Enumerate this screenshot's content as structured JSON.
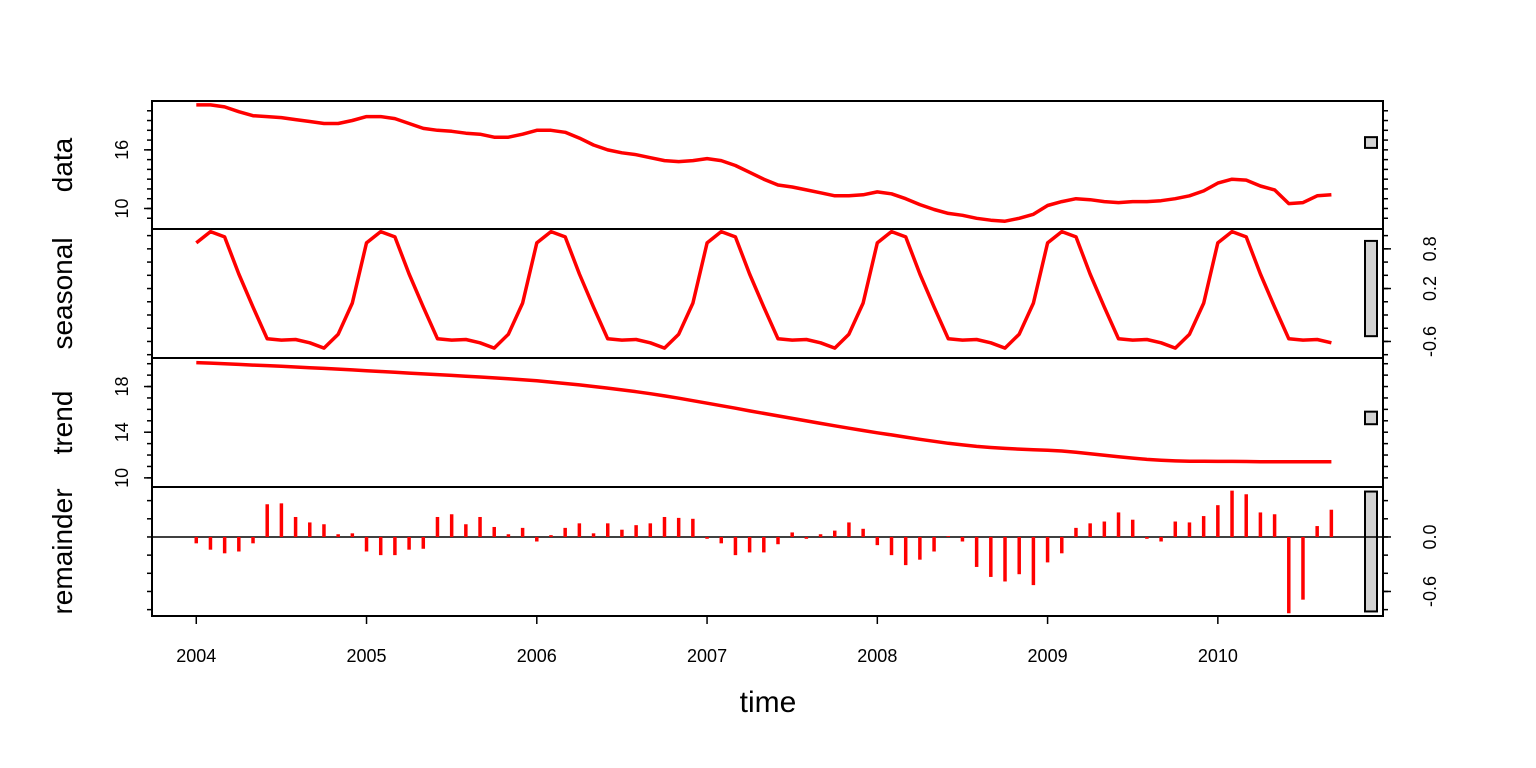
{
  "chart_data": {
    "type": "line",
    "xlabel": "time",
    "x_start": 2004.0,
    "x_step_years": 0.0833333,
    "xlim": [
      2003.74,
      2010.97
    ],
    "x_ticks": [
      {
        "value": 2004,
        "label": "2004"
      },
      {
        "value": 2005,
        "label": "2005"
      },
      {
        "value": 2006,
        "label": "2006"
      },
      {
        "value": 2007,
        "label": "2007"
      },
      {
        "value": 2008,
        "label": "2008"
      },
      {
        "value": 2009,
        "label": "2009"
      },
      {
        "value": 2010,
        "label": "2010"
      }
    ],
    "line_color": "#ff0000",
    "panels": [
      {
        "id": "data",
        "label": "data",
        "style": "line",
        "ylim": [
          7.9,
          21.0
        ],
        "tick_side": "left",
        "ticks": [
          {
            "value": 10,
            "label": "10"
          },
          {
            "value": 16,
            "label": "16"
          }
        ],
        "minor_step": 1,
        "scale_bar": [
          16.2,
          17.3
        ],
        "values": [
          20.6,
          20.6,
          20.4,
          19.9,
          19.5,
          19.4,
          19.3,
          19.1,
          18.9,
          18.7,
          18.7,
          19.0,
          19.4,
          19.4,
          19.2,
          18.7,
          18.2,
          18.0,
          17.9,
          17.7,
          17.6,
          17.3,
          17.3,
          17.6,
          18.0,
          18.0,
          17.8,
          17.2,
          16.5,
          16.0,
          15.7,
          15.5,
          15.2,
          14.9,
          14.8,
          14.9,
          15.1,
          14.9,
          14.4,
          13.7,
          13.0,
          12.4,
          12.2,
          11.9,
          11.6,
          11.3,
          11.3,
          11.4,
          11.7,
          11.5,
          11.0,
          10.4,
          9.9,
          9.5,
          9.3,
          9.0,
          8.8,
          8.7,
          9.0,
          9.4,
          10.3,
          10.7,
          11.0,
          10.9,
          10.7,
          10.6,
          10.7,
          10.7,
          10.8,
          11.0,
          11.3,
          11.8,
          12.6,
          13.0,
          12.9,
          12.3,
          11.9,
          10.5,
          10.6,
          11.3,
          11.4
        ]
      },
      {
        "id": "seasonal",
        "label": "seasonal",
        "style": "line",
        "ylim": [
          -0.85,
          1.1
        ],
        "tick_side": "right",
        "ticks": [
          {
            "value": -0.6,
            "label": "-0.6"
          },
          {
            "value": 0.2,
            "label": "0.2"
          },
          {
            "value": 0.8,
            "label": "0.8"
          }
        ],
        "minor_step": 0.2,
        "scale_bar": [
          -0.52,
          0.92
        ],
        "values": [
          0.89,
          1.06,
          0.98,
          0.42,
          -0.08,
          -0.56,
          -0.58,
          -0.57,
          -0.62,
          -0.7,
          -0.49,
          -0.02,
          0.89,
          1.06,
          0.98,
          0.42,
          -0.08,
          -0.56,
          -0.58,
          -0.57,
          -0.62,
          -0.7,
          -0.49,
          -0.02,
          0.89,
          1.06,
          0.98,
          0.42,
          -0.08,
          -0.56,
          -0.58,
          -0.57,
          -0.62,
          -0.7,
          -0.49,
          -0.02,
          0.89,
          1.06,
          0.98,
          0.42,
          -0.08,
          -0.56,
          -0.58,
          -0.57,
          -0.62,
          -0.7,
          -0.49,
          -0.02,
          0.89,
          1.06,
          0.98,
          0.42,
          -0.08,
          -0.56,
          -0.58,
          -0.57,
          -0.62,
          -0.7,
          -0.49,
          -0.02,
          0.89,
          1.06,
          0.98,
          0.42,
          -0.08,
          -0.56,
          -0.58,
          -0.57,
          -0.62,
          -0.7,
          -0.49,
          -0.02,
          0.89,
          1.06,
          0.98,
          0.42,
          -0.08,
          -0.56,
          -0.58,
          -0.57,
          -0.62
        ]
      },
      {
        "id": "trend",
        "label": "trend",
        "style": "line",
        "ylim": [
          9.2,
          20.5
        ],
        "tick_side": "left",
        "ticks": [
          {
            "value": 10,
            "label": "10"
          },
          {
            "value": 14,
            "label": "14"
          },
          {
            "value": 18,
            "label": "18"
          }
        ],
        "minor_step": 1,
        "scale_bar": [
          14.7,
          15.8
        ],
        "values": [
          20.1,
          20.05,
          19.99,
          19.94,
          19.88,
          19.83,
          19.77,
          19.71,
          19.65,
          19.59,
          19.53,
          19.46,
          19.39,
          19.32,
          19.25,
          19.18,
          19.11,
          19.05,
          18.98,
          18.91,
          18.84,
          18.76,
          18.68,
          18.6,
          18.5,
          18.39,
          18.27,
          18.14,
          18.0,
          17.86,
          17.71,
          17.55,
          17.37,
          17.18,
          16.98,
          16.76,
          16.54,
          16.32,
          16.1,
          15.87,
          15.65,
          15.43,
          15.21,
          14.99,
          14.77,
          14.56,
          14.35,
          14.15,
          13.95,
          13.76,
          13.57,
          13.38,
          13.2,
          13.03,
          12.89,
          12.76,
          12.66,
          12.58,
          12.52,
          12.47,
          12.42,
          12.35,
          12.25,
          12.12,
          11.98,
          11.85,
          11.73,
          11.62,
          11.54,
          11.49,
          11.46,
          11.45,
          11.44,
          11.44,
          11.43,
          11.42,
          11.42,
          11.42,
          11.42,
          11.42,
          11.42
        ]
      },
      {
        "id": "remainder",
        "label": "remainder",
        "style": "bars",
        "baseline": 0,
        "ylim": [
          -0.87,
          0.55
        ],
        "tick_side": "right",
        "ticks": [
          {
            "value": -0.6,
            "label": "-0.6"
          },
          {
            "value": 0.0,
            "label": "0.0"
          }
        ],
        "minor_step": 0.2,
        "scale_bar": [
          -0.82,
          0.5
        ],
        "values": [
          -0.07,
          -0.14,
          -0.18,
          -0.16,
          -0.07,
          0.36,
          0.37,
          0.22,
          0.16,
          0.14,
          0.03,
          0.04,
          -0.16,
          -0.2,
          -0.2,
          -0.14,
          -0.13,
          0.22,
          0.25,
          0.14,
          0.22,
          0.11,
          0.03,
          0.1,
          -0.05,
          0.02,
          0.1,
          0.15,
          0.04,
          0.15,
          0.08,
          0.13,
          0.15,
          0.22,
          0.21,
          0.2,
          -0.02,
          -0.07,
          -0.2,
          -0.17,
          -0.17,
          -0.08,
          0.05,
          -0.02,
          0.03,
          0.07,
          0.16,
          0.09,
          -0.09,
          -0.2,
          -0.31,
          -0.25,
          -0.16,
          0.01,
          -0.05,
          -0.33,
          -0.44,
          -0.49,
          -0.41,
          -0.53,
          -0.28,
          -0.18,
          0.1,
          0.15,
          0.17,
          0.27,
          0.19,
          -0.02,
          -0.05,
          0.17,
          0.16,
          0.23,
          0.35,
          0.51,
          0.47,
          0.27,
          0.25,
          -0.84,
          -0.69,
          0.12,
          0.3
        ]
      }
    ]
  }
}
